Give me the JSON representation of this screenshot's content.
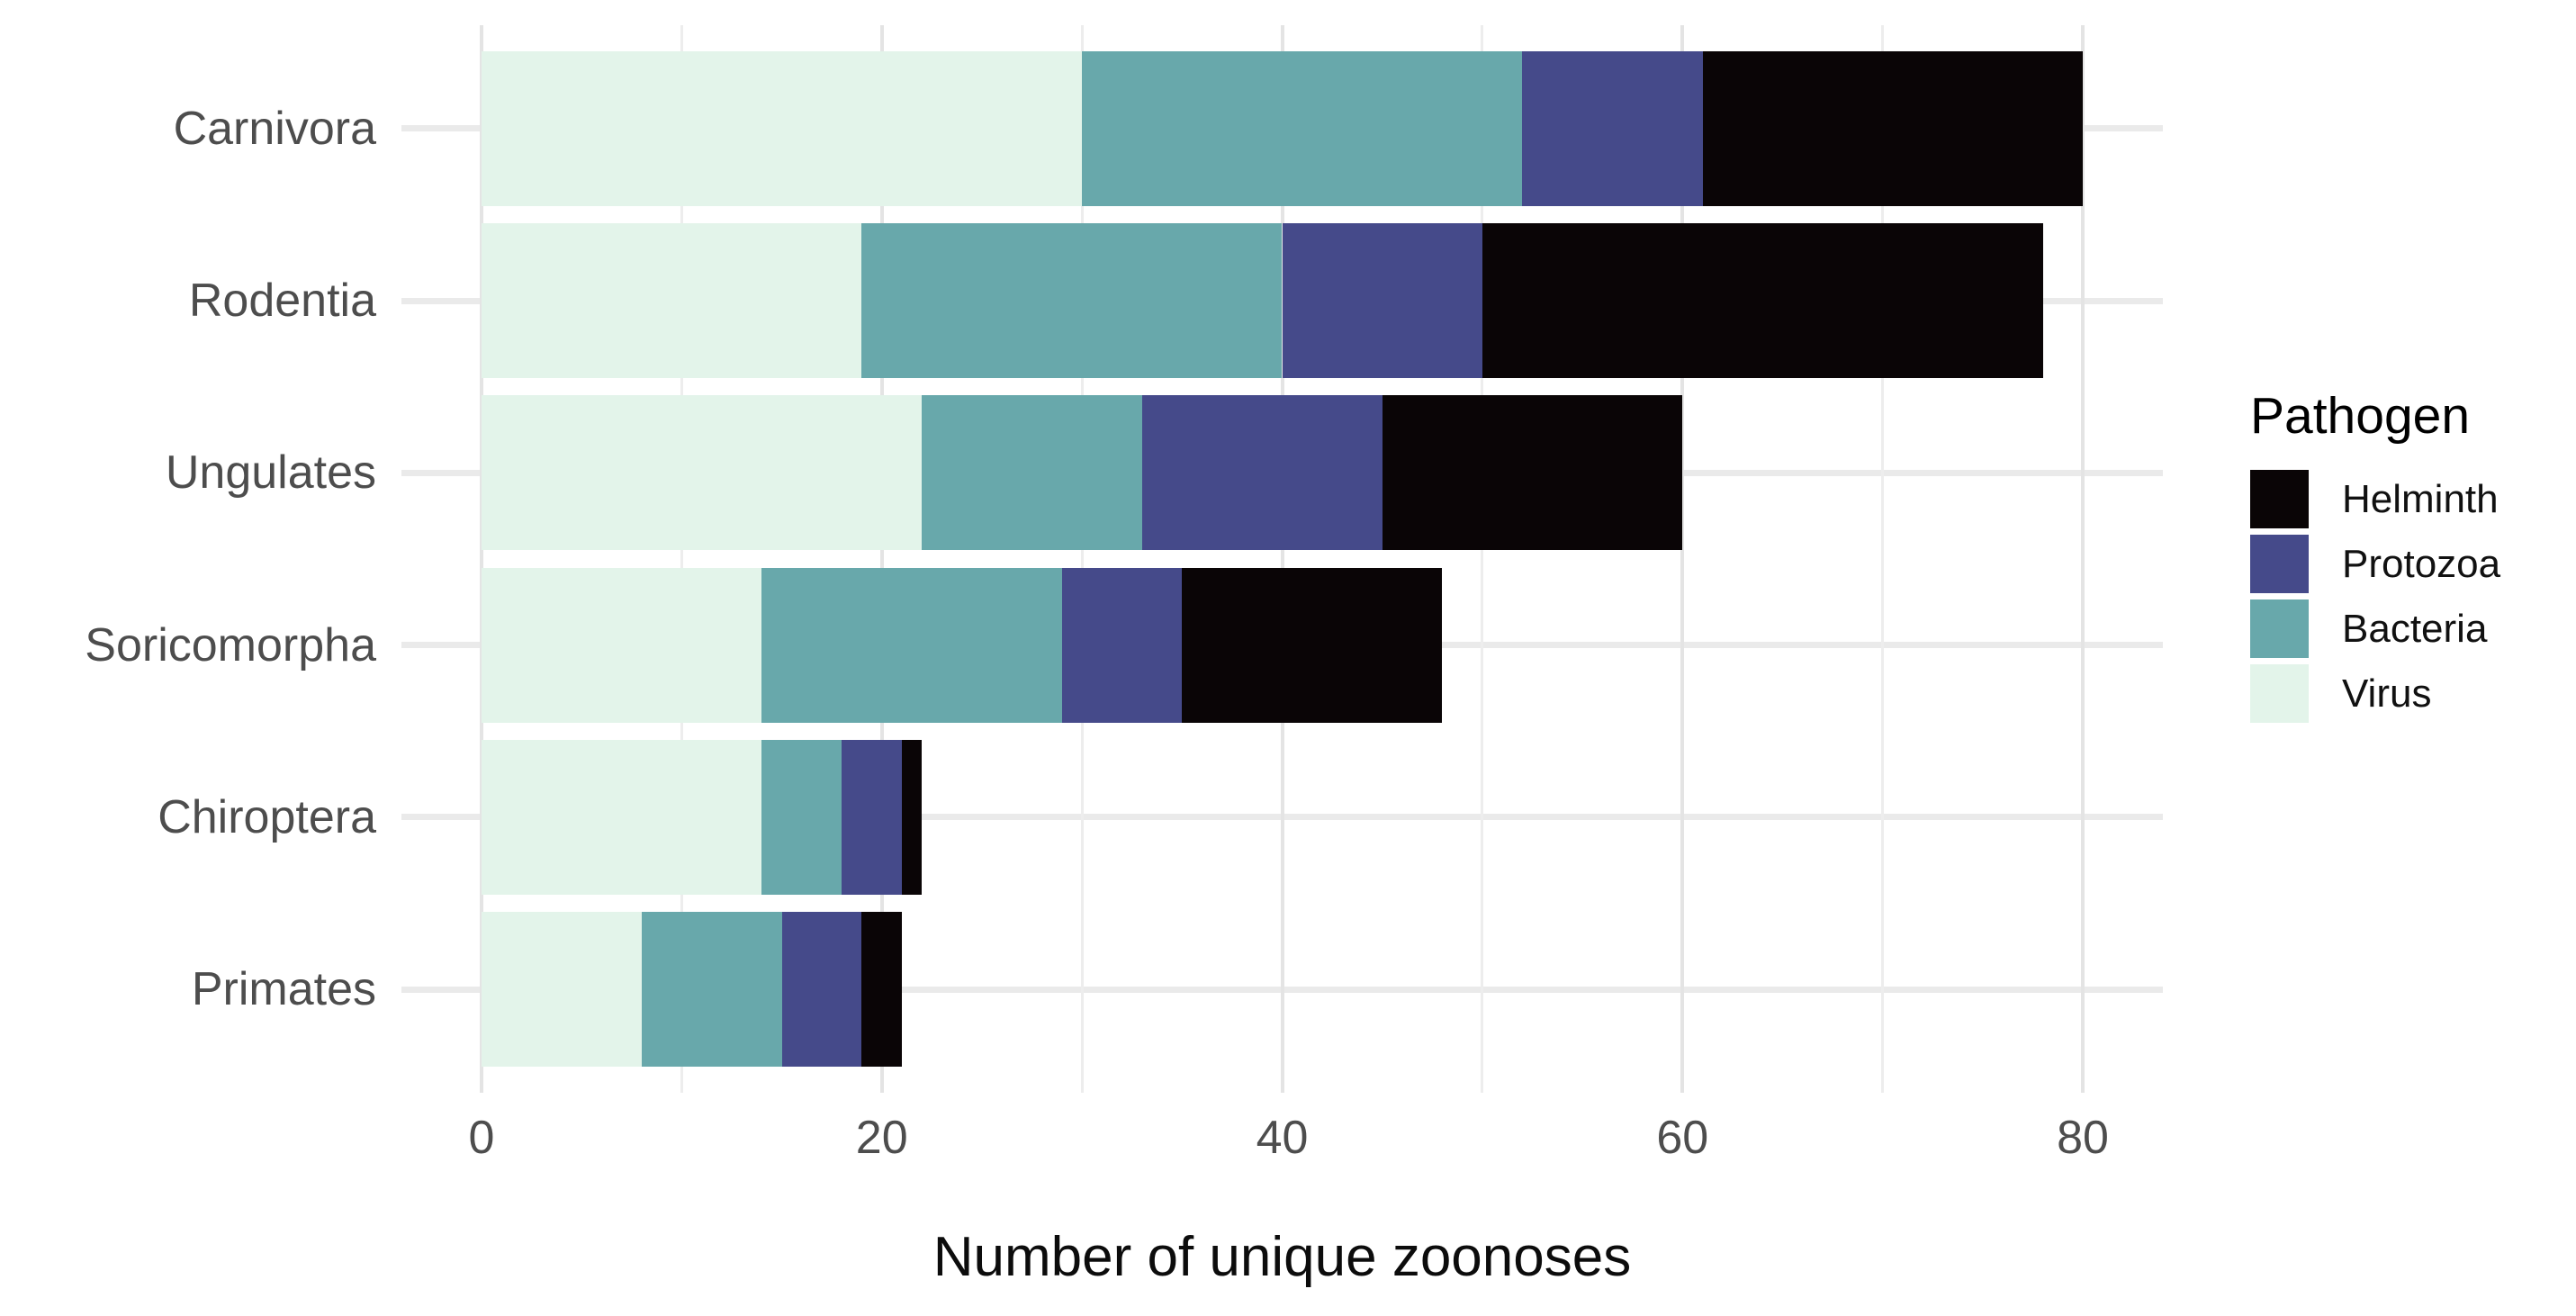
{
  "chart_data": {
    "type": "bar",
    "orientation": "horizontal",
    "stacked": true,
    "title": "",
    "xlabel": "Number of unique zoonoses",
    "ylabel": "",
    "categories": [
      "Carnivora",
      "Rodentia",
      "Ungulates",
      "Soricomorpha",
      "Chiroptera",
      "Primates"
    ],
    "series": [
      {
        "name": "Virus",
        "color": "#E3F4EA",
        "values": [
          30,
          19,
          22,
          14,
          14,
          8
        ]
      },
      {
        "name": "Bacteria",
        "color": "#68A8AB",
        "values": [
          22,
          21,
          11,
          15,
          4,
          7
        ]
      },
      {
        "name": "Protozoa",
        "color": "#454A8A",
        "values": [
          9,
          10,
          12,
          6,
          3,
          4
        ]
      },
      {
        "name": "Helminth",
        "color": "#0A0506",
        "values": [
          19,
          28,
          15,
          13,
          1,
          2
        ]
      }
    ],
    "totals": [
      80,
      78,
      60,
      48,
      22,
      21
    ],
    "x_ticks": [
      0,
      20,
      40,
      60,
      80
    ],
    "x_minor_ticks": [
      10,
      30,
      50,
      70
    ],
    "xlim": [
      -4,
      84
    ],
    "grid": true,
    "legend": {
      "title": "Pathogen",
      "position": "right",
      "entries": [
        "Helminth",
        "Protozoa",
        "Bacteria",
        "Virus"
      ]
    }
  },
  "style": {
    "background": "#ffffff",
    "axis_text_color": "#4d4d4d",
    "axis_title_color": "#0c0c0c",
    "grid_major_color": "#e4e4e4",
    "grid_minor_color": "#ededed",
    "grid_row_color": "#eaeaea",
    "legend_text_color": "#111111"
  }
}
